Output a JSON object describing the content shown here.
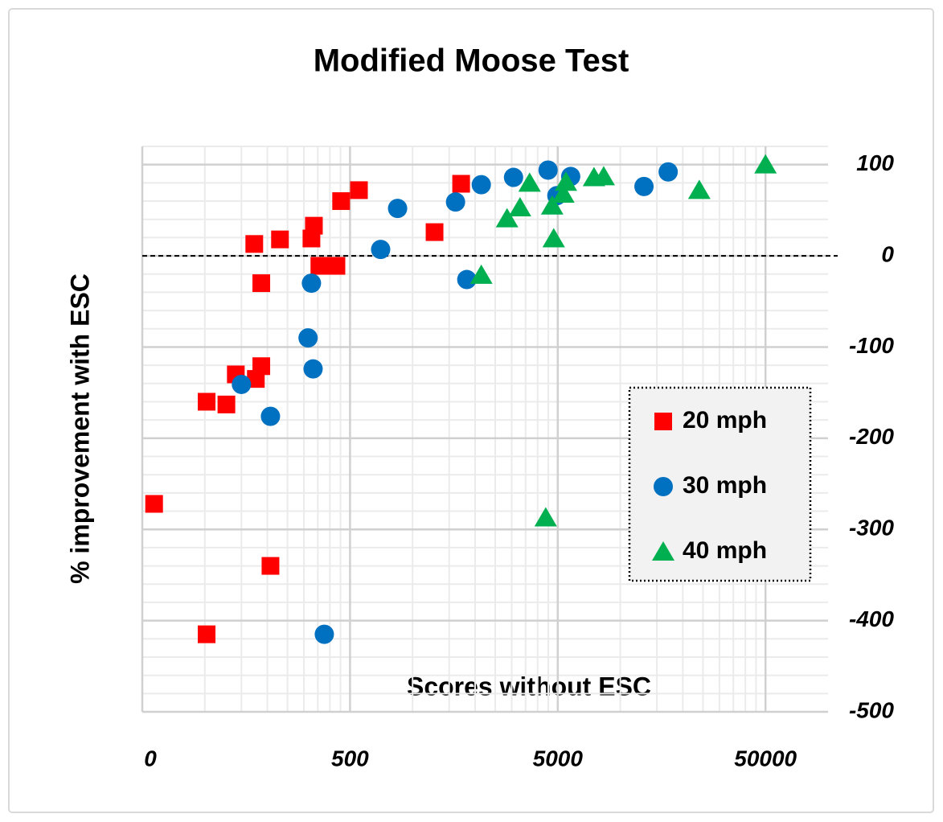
{
  "chart_data": {
    "type": "scatter",
    "title": "Modified Moose Test",
    "x_label": "Scores without ESC",
    "y_label": "% improvement with ESC",
    "xscale": "log",
    "xlim": [
      50,
      100000
    ],
    "xticks": [
      {
        "value": 50,
        "label": "0"
      },
      500,
      5000,
      50000
    ],
    "ylim": [
      -500,
      120
    ],
    "yticks": [
      100,
      0,
      -100,
      -200,
      -300,
      -400,
      -500
    ],
    "grid": true,
    "legend": "lower right",
    "series": [
      {
        "name": "20 mph",
        "color": "#ff0000",
        "marker": "square",
        "x": [
          57,
          102,
          102,
          127,
          141,
          173,
          176,
          187,
          187,
          207,
          230,
          326,
          335,
          356,
          430,
          453,
          552,
          1276,
          1713
        ],
        "values": [
          -272,
          -160,
          -415,
          -163,
          -130,
          13,
          -135,
          -30,
          -121,
          -340,
          18,
          19,
          33,
          -11,
          -11,
          60,
          72,
          26,
          79
        ]
      },
      {
        "name": "30 mph",
        "color": "#0070c0",
        "marker": "circle",
        "x": [
          150,
          207,
          314,
          326,
          332,
          376,
          702,
          847,
          1610,
          1824,
          2142,
          3062,
          4490,
          4950,
          5770,
          13000,
          17000
        ],
        "values": [
          -141,
          -176,
          -90,
          -30,
          -124,
          -415,
          7,
          52,
          59,
          -26,
          78,
          86,
          94,
          66,
          87,
          76,
          92
        ]
      },
      {
        "name": "40 mph",
        "color": "#00b050",
        "marker": "triangle",
        "x": [
          2142,
          2850,
          3290,
          3660,
          4375,
          4700,
          4780,
          5320,
          5470,
          7470,
          8320,
          24000,
          50000
        ],
        "values": [
          -21,
          41,
          53,
          80,
          -287,
          55,
          19,
          68,
          81,
          86,
          87,
          72,
          100
        ]
      }
    ]
  }
}
